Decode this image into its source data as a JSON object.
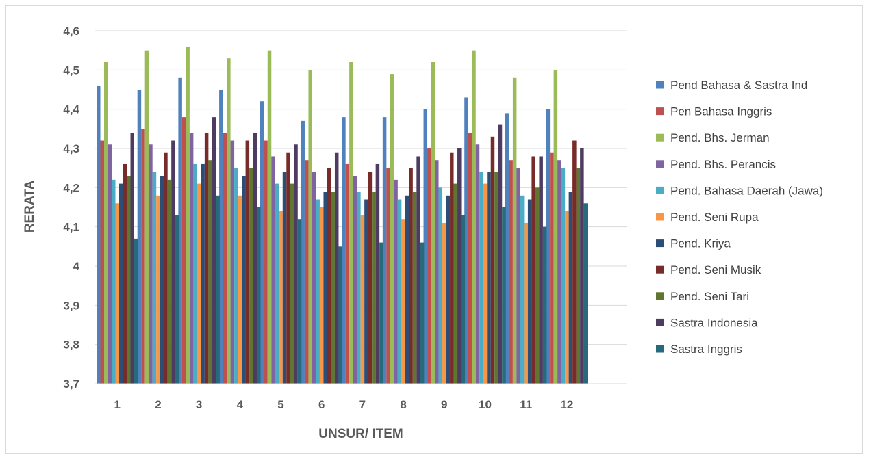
{
  "chart_data": {
    "type": "bar",
    "title": "",
    "xlabel": "UNSUR/ ITEM",
    "ylabel": "RERATA",
    "ylim": [
      3.7,
      4.6
    ],
    "yticks": [
      "3,7",
      "3,8",
      "3,9",
      "4",
      "4,1",
      "4,2",
      "4,3",
      "4,4",
      "4,5",
      "4,6"
    ],
    "ytick_values": [
      3.7,
      3.8,
      3.9,
      4.0,
      4.1,
      4.2,
      4.3,
      4.4,
      4.5,
      4.6
    ],
    "grid": true,
    "legend_position": "right",
    "categories": [
      "1",
      "2",
      "3",
      "4",
      "5",
      "6",
      "7",
      "8",
      "9",
      "10",
      "11",
      "12"
    ],
    "series": [
      {
        "name": "Pend Bahasa & Sastra Ind",
        "color": "#4f81bd",
        "values": [
          4.46,
          4.45,
          4.48,
          4.45,
          4.42,
          4.37,
          4.38,
          4.38,
          4.4,
          4.43,
          4.39,
          4.4
        ]
      },
      {
        "name": "Pen Bahasa Inggris",
        "color": "#c0504d",
        "values": [
          4.32,
          4.35,
          4.38,
          4.34,
          4.32,
          4.27,
          4.26,
          4.25,
          4.3,
          4.34,
          4.27,
          4.29
        ]
      },
      {
        "name": "Pend. Bhs. Jerman",
        "color": "#9bbb59",
        "values": [
          4.52,
          4.55,
          4.56,
          4.53,
          4.55,
          4.5,
          4.52,
          4.49,
          4.52,
          4.55,
          4.48,
          4.5
        ]
      },
      {
        "name": "Pend. Bhs. Perancis",
        "color": "#8064a2",
        "values": [
          4.31,
          4.31,
          4.34,
          4.32,
          4.28,
          4.24,
          4.23,
          4.22,
          4.27,
          4.31,
          4.25,
          4.27
        ]
      },
      {
        "name": "Pend. Bahasa Daerah (Jawa)",
        "color": "#4bacc6",
        "values": [
          4.22,
          4.24,
          4.26,
          4.25,
          4.21,
          4.17,
          4.19,
          4.17,
          4.2,
          4.24,
          4.18,
          4.25
        ]
      },
      {
        "name": "Pend. Seni Rupa",
        "color": "#f79646",
        "values": [
          4.16,
          4.18,
          4.21,
          4.18,
          4.14,
          4.15,
          4.13,
          4.12,
          4.11,
          4.21,
          4.11,
          4.14
        ]
      },
      {
        "name": "Pend. Kriya",
        "color": "#2c4d75",
        "values": [
          4.21,
          4.23,
          4.26,
          4.23,
          4.24,
          4.19,
          4.17,
          4.18,
          4.18,
          4.24,
          4.17,
          4.19
        ]
      },
      {
        "name": "Pend. Seni Musik",
        "color": "#772c2a",
        "values": [
          4.26,
          4.29,
          4.34,
          4.32,
          4.29,
          4.25,
          4.24,
          4.25,
          4.29,
          4.33,
          4.28,
          4.32
        ]
      },
      {
        "name": "Pend. Seni Tari",
        "color": "#5f7530",
        "values": [
          4.23,
          4.22,
          4.27,
          4.25,
          4.21,
          4.19,
          4.19,
          4.19,
          4.21,
          4.24,
          4.2,
          4.25
        ]
      },
      {
        "name": "Sastra Indonesia",
        "color": "#4d3b62",
        "values": [
          4.34,
          4.32,
          4.38,
          4.34,
          4.31,
          4.29,
          4.26,
          4.28,
          4.3,
          4.36,
          4.28,
          4.3
        ]
      },
      {
        "name": "Sastra Inggris",
        "color": "#276a7c",
        "values": [
          4.07,
          4.13,
          4.18,
          4.15,
          4.12,
          4.05,
          4.06,
          4.06,
          4.13,
          4.15,
          4.1,
          4.16
        ]
      }
    ]
  },
  "colors": {
    "gridline": "#d9d9d9",
    "axis_text": "#595959",
    "legend_text": "#404040",
    "frame_border": "#d9d9d9"
  }
}
